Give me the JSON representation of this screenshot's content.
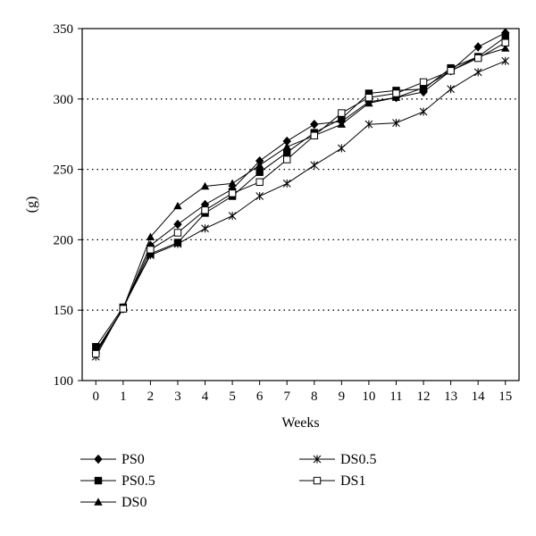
{
  "chart_data": {
    "type": "line",
    "title": "",
    "xlabel": "Weeks",
    "ylabel": "(g)",
    "xlim": [
      -0.5,
      15.5
    ],
    "ylim": [
      100,
      350
    ],
    "x": [
      0,
      1,
      2,
      3,
      4,
      5,
      6,
      7,
      8,
      9,
      10,
      11,
      12,
      13,
      14,
      15
    ],
    "x_tick_labels": [
      "0",
      "1",
      "2",
      "3",
      "4",
      "5",
      "6",
      "7",
      "8",
      "9",
      "10",
      "11",
      "12",
      "13",
      "14",
      "15"
    ],
    "y_ticks": [
      100,
      150,
      200,
      250,
      300,
      350
    ],
    "y_tick_labels": [
      "100",
      "150",
      "200",
      "250",
      "300",
      "350"
    ],
    "grid": "horizontal dotted",
    "legend_position": "bottom",
    "series": [
      {
        "name": "PS0",
        "marker": "diamond-filled",
        "values": [
          120,
          151,
          196,
          211,
          225,
          236,
          256,
          270,
          282,
          284,
          298,
          301,
          305,
          320,
          337,
          347
        ]
      },
      {
        "name": "PS0.5",
        "marker": "square-filled",
        "values": [
          124,
          152,
          190,
          198,
          219,
          231,
          248,
          262,
          276,
          286,
          304,
          306,
          307,
          322,
          330,
          344
        ]
      },
      {
        "name": "DS0",
        "marker": "triangle-filled",
        "values": [
          121,
          151,
          202,
          224,
          238,
          240,
          253,
          266,
          274,
          282,
          297,
          301,
          308,
          320,
          330,
          336
        ]
      },
      {
        "name": "DS0.5",
        "marker": "asterisk",
        "values": [
          117,
          152,
          189,
          197,
          208,
          217,
          231,
          240,
          253,
          265,
          282,
          283,
          291,
          307,
          319,
          327
        ]
      },
      {
        "name": "DS1",
        "marker": "square-open",
        "values": [
          119,
          151,
          193,
          205,
          221,
          233,
          241,
          257,
          274,
          290,
          301,
          304,
          312,
          320,
          329,
          340
        ]
      }
    ]
  }
}
